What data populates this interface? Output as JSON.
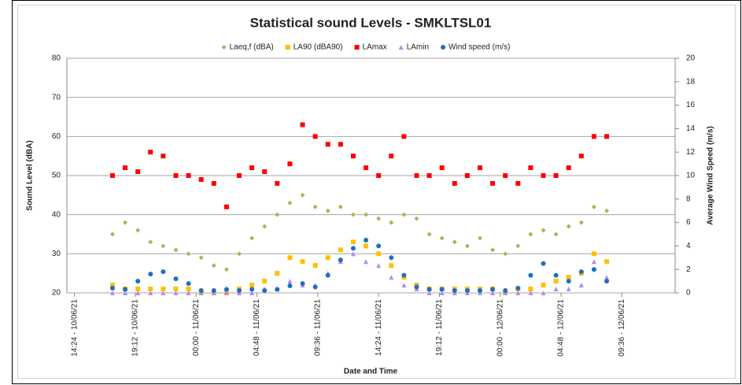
{
  "chart_data": {
    "type": "scatter",
    "title": "Statistical sound Levels - SMKLTSL01",
    "ylabel": "Sound Level (dBA)",
    "y2label": "Average Wind Speed (m/s)",
    "xlabel": "Date and Time",
    "x": [
      3,
      4,
      5,
      6,
      7,
      8,
      9,
      10,
      11,
      12,
      13,
      14,
      15,
      16,
      17,
      18,
      19,
      20,
      21,
      22,
      23,
      24,
      25,
      26,
      27,
      28,
      29,
      30,
      31,
      32,
      33,
      34,
      35,
      36,
      37,
      38,
      39,
      40,
      41,
      42
    ],
    "xlim": [
      -0.6,
      47.4
    ],
    "xticks": [
      {
        "value": 0,
        "label": "14:24 - 10/06/21"
      },
      {
        "value": 4.8,
        "label": "19:12 - 10/06/21"
      },
      {
        "value": 9.6,
        "label": "00:00 - 11/06/21"
      },
      {
        "value": 14.4,
        "label": "04:48 - 11/06/21"
      },
      {
        "value": 19.2,
        "label": "09:36 - 11/06/21"
      },
      {
        "value": 24,
        "label": "14:24 - 11/06/21"
      },
      {
        "value": 28.8,
        "label": "19:12 - 11/06/21"
      },
      {
        "value": 33.6,
        "label": "00:00 - 12/06/21"
      },
      {
        "value": 38.4,
        "label": "04:48 - 12/06/21"
      },
      {
        "value": 43.2,
        "label": "09:36 - 12/06/21"
      }
    ],
    "ylim": [
      20,
      80
    ],
    "yticks": [
      20,
      30,
      40,
      50,
      60,
      70,
      80
    ],
    "y2lim": [
      0,
      20
    ],
    "y2ticks": [
      0,
      2,
      4,
      6,
      8,
      10,
      12,
      14,
      16,
      18,
      20
    ],
    "grid": true,
    "legend": "top",
    "series": [
      {
        "name": "Laeq,f (dBA)",
        "color": "#9bbb59",
        "marker": "diamond",
        "values": [
          35,
          38,
          36,
          33,
          32,
          31,
          30,
          29,
          27,
          26,
          30,
          34,
          37,
          40,
          43,
          45,
          42,
          41,
          42,
          40,
          40,
          39,
          38,
          40,
          39,
          35,
          34,
          33,
          32,
          34,
          31,
          30,
          32,
          35,
          36,
          35,
          37,
          38,
          42,
          41
        ]
      },
      {
        "name": "LA90  (dBA90)",
        "color": "#ffc000",
        "marker": "square",
        "values": [
          22,
          21,
          21,
          21,
          21,
          21,
          21,
          20,
          20,
          20,
          21,
          22,
          23,
          25,
          29,
          28,
          27,
          29,
          31,
          33,
          32,
          30,
          27,
          24,
          22,
          21,
          21,
          21,
          21,
          21,
          21,
          20,
          21,
          21,
          22,
          23,
          24,
          25,
          30,
          28
        ]
      },
      {
        "name": "LAmax",
        "color": "#ff0000",
        "marker": "square",
        "values": [
          50,
          52,
          51,
          56,
          55,
          50,
          50,
          49,
          48,
          42,
          50,
          52,
          51,
          48,
          53,
          63,
          60,
          58,
          58,
          55,
          52,
          50,
          55,
          60,
          50,
          50,
          52,
          48,
          50,
          52,
          48,
          50,
          48,
          52,
          50,
          50,
          52,
          55,
          60,
          60
        ]
      },
      {
        "name": "LAmin",
        "color": "#b08cf0",
        "marker": "triangle",
        "values": [
          20,
          20,
          20,
          20,
          20,
          20,
          20,
          20,
          20,
          20,
          20,
          20,
          21,
          21,
          23,
          22,
          22,
          25,
          28,
          30,
          28,
          27,
          24,
          22,
          21,
          20,
          20,
          20,
          20,
          20,
          20,
          20,
          20,
          20,
          20,
          21,
          21,
          22,
          28,
          24
        ]
      },
      {
        "name": "Wind speed (m/s)",
        "color": "#1f6fbf",
        "marker": "circle",
        "axis": "y2",
        "values": [
          0.4,
          0.3,
          1.0,
          1.6,
          1.8,
          1.2,
          0.8,
          0.2,
          0.2,
          0.3,
          0.2,
          0.3,
          0.2,
          0.3,
          0.6,
          0.8,
          0.5,
          1.5,
          2.8,
          3.8,
          4.5,
          4.0,
          3.0,
          1.5,
          0.5,
          0.3,
          0.3,
          0.2,
          0.2,
          0.2,
          0.3,
          0.2,
          0.4,
          1.5,
          2.5,
          1.5,
          1.0,
          1.8,
          2.0,
          1.0
        ]
      }
    ]
  }
}
